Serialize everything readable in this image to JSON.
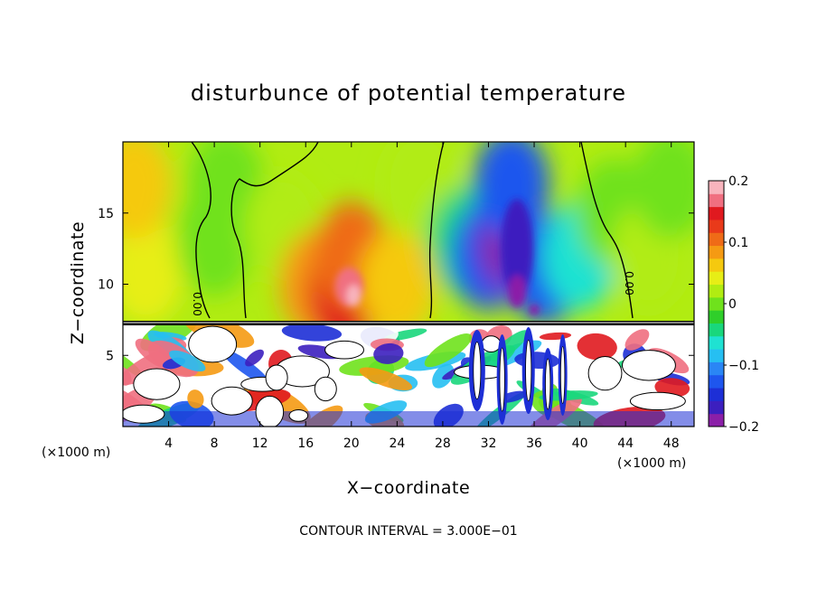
{
  "chart_data": {
    "type": "heatmap",
    "title": "disturbunce of potential temperature",
    "xlabel": "X−coordinate",
    "ylabel": "Z−coordinate",
    "x_unit_left": "(×1000 m)",
    "x_unit_right": "(×1000 m)",
    "xlim": [
      0,
      50
    ],
    "ylim": [
      0,
      20
    ],
    "x_ticks": [
      "4",
      "8",
      "12",
      "16",
      "20",
      "24",
      "28",
      "32",
      "36",
      "40",
      "44",
      "48"
    ],
    "x_tick_values": [
      4,
      8,
      12,
      16,
      20,
      24,
      28,
      32,
      36,
      40,
      44,
      48
    ],
    "y_ticks": [
      "5",
      "10",
      "15"
    ],
    "y_tick_values": [
      5,
      10,
      15
    ],
    "colorbar": {
      "min": -0.2,
      "max": 0.2,
      "tick_labels": [
        "0.2",
        "0.1",
        "0",
        "−0.1",
        "−0.2"
      ],
      "tick_values": [
        0.2,
        0.1,
        0,
        -0.1,
        -0.2
      ],
      "colors": [
        "#8b1fa8",
        "#3c1fbf",
        "#1d2fd6",
        "#1e56ee",
        "#2a86f5",
        "#26bff2",
        "#1fe2d2",
        "#19d77c",
        "#2fcf2a",
        "#6fe21c",
        "#b1ec12",
        "#e7ee16",
        "#f5c90f",
        "#f59a13",
        "#ef6b17",
        "#e93a1a",
        "#e0191f",
        "#f06f80",
        "#f8b4bd"
      ]
    },
    "contour_label": "0.00",
    "contour_interval_text": "CONTOUR INTERVAL = 3.000E−01",
    "boundary_z": 7.3,
    "upper_field": [
      {
        "x": 2,
        "z": 11,
        "v": 0.05
      },
      {
        "x": 1,
        "z": 17,
        "v": 0.06
      },
      {
        "x": 8,
        "z": 13,
        "v": -0.01
      },
      {
        "x": 9,
        "z": 17,
        "v": 0.0
      },
      {
        "x": 14,
        "z": 14,
        "v": 0.03
      },
      {
        "x": 17,
        "z": 10,
        "v": 0.08
      },
      {
        "x": 19.5,
        "z": 9.5,
        "v": 0.15
      },
      {
        "x": 20,
        "z": 12,
        "v": 0.1
      },
      {
        "x": 24,
        "z": 10,
        "v": 0.06
      },
      {
        "x": 26,
        "z": 17,
        "v": 0.03
      },
      {
        "x": 30,
        "z": 13,
        "v": -0.05
      },
      {
        "x": 32,
        "z": 12,
        "v": -0.12
      },
      {
        "x": 34.5,
        "z": 13,
        "v": -0.18
      },
      {
        "x": 34,
        "z": 17,
        "v": -0.12
      },
      {
        "x": 37,
        "z": 11,
        "v": -0.13
      },
      {
        "x": 40,
        "z": 12,
        "v": -0.07
      },
      {
        "x": 43,
        "z": 15,
        "v": -0.01
      },
      {
        "x": 46,
        "z": 12,
        "v": 0.02
      },
      {
        "x": 48,
        "z": 17,
        "v": 0.01
      }
    ]
  }
}
